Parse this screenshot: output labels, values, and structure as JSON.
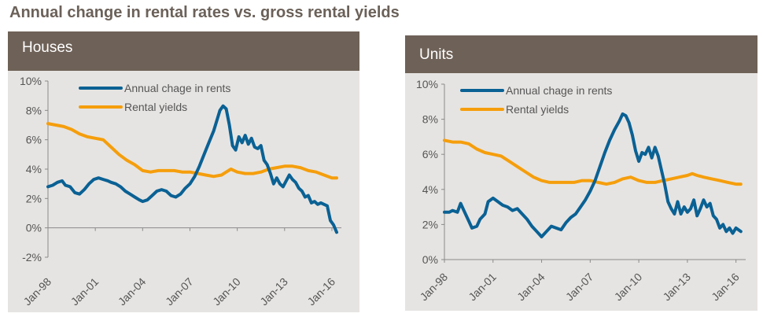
{
  "page": {
    "title": "Annual change in rental rates vs. gross rental yields"
  },
  "colors": {
    "rents": "#0a6194",
    "yields": "#f59e0c",
    "header_bg": "#6e6157",
    "panel_bg": "#e6e4e2",
    "axis": "#8a8a8a",
    "text": "#555555"
  },
  "chart_data": [
    {
      "type": "line",
      "title": "Houses",
      "x_ticks": [
        "Jan-98",
        "Jan-01",
        "Jan-04",
        "Jan-07",
        "Jan-10",
        "Jan-13",
        "Jan-16"
      ],
      "y_ticks": [
        "10%",
        "8%",
        "6%",
        "4%",
        "2%",
        "0%",
        "-2%"
      ],
      "ylim": [
        -2,
        10
      ],
      "xlim": [
        1998,
        2016.6
      ],
      "legend": [
        "Annual chage in rents",
        "Rental yields"
      ],
      "series": [
        {
          "name": "Annual chage in rents",
          "x": [
            1998.0,
            1998.3,
            1998.6,
            1998.9,
            1999.1,
            1999.4,
            1999.7,
            2000.0,
            2000.3,
            2000.6,
            2000.9,
            2001.2,
            2001.5,
            2001.8,
            2002.0,
            2002.3,
            2002.6,
            2002.9,
            2003.2,
            2003.5,
            2003.8,
            2004.0,
            2004.3,
            2004.6,
            2004.9,
            2005.2,
            2005.5,
            2005.8,
            2006.1,
            2006.4,
            2006.7,
            2007.0,
            2007.3,
            2007.6,
            2007.9,
            2008.2,
            2008.5,
            2008.7,
            2008.9,
            2009.1,
            2009.3,
            2009.5,
            2009.7,
            2009.9,
            2010.1,
            2010.3,
            2010.5,
            2010.7,
            2010.9,
            2011.1,
            2011.3,
            2011.5,
            2011.7,
            2011.9,
            2012.1,
            2012.3,
            2012.5,
            2012.7,
            2012.9,
            2013.1,
            2013.3,
            2013.5,
            2013.7,
            2013.9,
            2014.1,
            2014.3,
            2014.5,
            2014.7,
            2014.9,
            2015.1,
            2015.3,
            2015.5,
            2015.7,
            2015.9,
            2016.1,
            2016.3
          ],
          "values": [
            2.8,
            2.9,
            3.1,
            3.2,
            2.9,
            2.8,
            2.4,
            2.3,
            2.6,
            3.0,
            3.3,
            3.4,
            3.3,
            3.2,
            3.1,
            3.0,
            2.8,
            2.5,
            2.3,
            2.1,
            1.9,
            1.8,
            1.9,
            2.2,
            2.5,
            2.6,
            2.5,
            2.2,
            2.1,
            2.3,
            2.7,
            3.0,
            3.5,
            4.2,
            5.0,
            5.8,
            6.6,
            7.3,
            8.0,
            8.3,
            8.1,
            7.0,
            5.6,
            5.3,
            6.2,
            5.8,
            6.3,
            5.7,
            6.1,
            5.5,
            5.4,
            5.6,
            4.6,
            4.3,
            3.7,
            3.0,
            3.4,
            3.0,
            2.8,
            3.2,
            3.6,
            3.3,
            3.1,
            2.7,
            2.5,
            2.1,
            2.2,
            1.7,
            1.8,
            1.6,
            1.7,
            1.6,
            1.5,
            0.5,
            0.2,
            -0.3
          ]
        },
        {
          "name": "Rental yields",
          "x": [
            1998.0,
            1998.5,
            1999.0,
            1999.5,
            2000.0,
            2000.5,
            2001.0,
            2001.5,
            2002.0,
            2002.5,
            2003.0,
            2003.5,
            2004.0,
            2004.5,
            2005.0,
            2005.5,
            2006.0,
            2006.5,
            2007.0,
            2007.5,
            2008.0,
            2008.5,
            2009.0,
            2009.3,
            2009.6,
            2010.0,
            2010.5,
            2011.0,
            2011.5,
            2012.0,
            2012.5,
            2013.0,
            2013.5,
            2014.0,
            2014.5,
            2015.0,
            2015.5,
            2016.0,
            2016.3
          ],
          "values": [
            7.1,
            7.0,
            6.9,
            6.7,
            6.4,
            6.2,
            6.1,
            6.0,
            5.5,
            5.0,
            4.6,
            4.3,
            3.9,
            3.8,
            3.9,
            3.9,
            3.9,
            3.8,
            3.8,
            3.7,
            3.6,
            3.5,
            3.6,
            3.8,
            4.0,
            3.8,
            3.7,
            3.7,
            3.8,
            4.0,
            4.1,
            4.2,
            4.2,
            4.1,
            3.9,
            3.8,
            3.6,
            3.4,
            3.4
          ]
        }
      ]
    },
    {
      "type": "line",
      "title": "Units",
      "x_ticks": [
        "Jan-98",
        "Jan-01",
        "Jan-04",
        "Jan-07",
        "Jan-10",
        "Jan-13",
        "Jan-16"
      ],
      "y_ticks": [
        "10%",
        "8%",
        "6%",
        "4%",
        "2%",
        "0%"
      ],
      "ylim": [
        0,
        10
      ],
      "xlim": [
        1998,
        2016.6
      ],
      "legend": [
        "Annual chage in rents",
        "Rental yields"
      ],
      "series": [
        {
          "name": "Annual chage in rents",
          "x": [
            1998.0,
            1998.3,
            1998.5,
            1998.8,
            1999.0,
            1999.2,
            1999.5,
            1999.7,
            2000.0,
            2000.2,
            2000.5,
            2000.7,
            2001.0,
            2001.3,
            2001.6,
            2001.9,
            2002.2,
            2002.5,
            2002.8,
            2003.1,
            2003.4,
            2003.7,
            2004.0,
            2004.3,
            2004.6,
            2004.9,
            2005.2,
            2005.5,
            2005.8,
            2006.1,
            2006.4,
            2006.7,
            2007.0,
            2007.3,
            2007.6,
            2007.9,
            2008.2,
            2008.5,
            2008.8,
            2009.0,
            2009.2,
            2009.4,
            2009.6,
            2009.8,
            2010.0,
            2010.2,
            2010.4,
            2010.6,
            2010.8,
            2011.0,
            2011.2,
            2011.4,
            2011.6,
            2011.8,
            2012.0,
            2012.2,
            2012.4,
            2012.6,
            2012.8,
            2013.0,
            2013.2,
            2013.4,
            2013.6,
            2013.8,
            2014.0,
            2014.2,
            2014.4,
            2014.6,
            2014.8,
            2015.0,
            2015.2,
            2015.4,
            2015.6,
            2015.8,
            2016.0,
            2016.3
          ],
          "values": [
            2.7,
            2.7,
            2.8,
            2.7,
            3.2,
            2.8,
            2.2,
            1.8,
            1.9,
            2.3,
            2.6,
            3.3,
            3.5,
            3.3,
            3.1,
            3.0,
            2.8,
            2.9,
            2.6,
            2.3,
            1.9,
            1.6,
            1.3,
            1.6,
            1.9,
            1.8,
            1.7,
            2.1,
            2.4,
            2.6,
            3.0,
            3.4,
            3.9,
            4.5,
            5.3,
            6.1,
            6.8,
            7.4,
            7.9,
            8.3,
            8.2,
            7.8,
            7.1,
            6.2,
            5.6,
            6.1,
            6.0,
            6.4,
            5.8,
            6.4,
            5.9,
            5.1,
            4.3,
            3.3,
            2.9,
            2.6,
            3.3,
            2.6,
            3.0,
            2.7,
            2.9,
            3.4,
            2.5,
            2.9,
            3.4,
            3.0,
            3.2,
            2.5,
            2.3,
            1.8,
            2.0,
            1.6,
            1.8,
            1.5,
            1.8,
            1.6
          ]
        },
        {
          "name": "Rental yields",
          "x": [
            1998.0,
            1998.5,
            1999.0,
            1999.5,
            2000.0,
            2000.5,
            2001.0,
            2001.5,
            2002.0,
            2002.5,
            2003.0,
            2003.5,
            2004.0,
            2004.5,
            2005.0,
            2005.5,
            2006.0,
            2006.5,
            2007.0,
            2007.5,
            2008.0,
            2008.5,
            2009.0,
            2009.5,
            2010.0,
            2010.5,
            2011.0,
            2011.5,
            2012.0,
            2012.5,
            2013.0,
            2013.3,
            2013.6,
            2014.0,
            2014.5,
            2015.0,
            2015.5,
            2016.0,
            2016.3
          ],
          "values": [
            6.8,
            6.7,
            6.7,
            6.6,
            6.3,
            6.1,
            6.0,
            5.9,
            5.6,
            5.3,
            5.0,
            4.7,
            4.5,
            4.4,
            4.4,
            4.4,
            4.4,
            4.5,
            4.5,
            4.4,
            4.3,
            4.4,
            4.6,
            4.7,
            4.5,
            4.4,
            4.4,
            4.5,
            4.6,
            4.7,
            4.8,
            4.9,
            4.8,
            4.7,
            4.6,
            4.5,
            4.4,
            4.3,
            4.3
          ]
        }
      ]
    }
  ]
}
